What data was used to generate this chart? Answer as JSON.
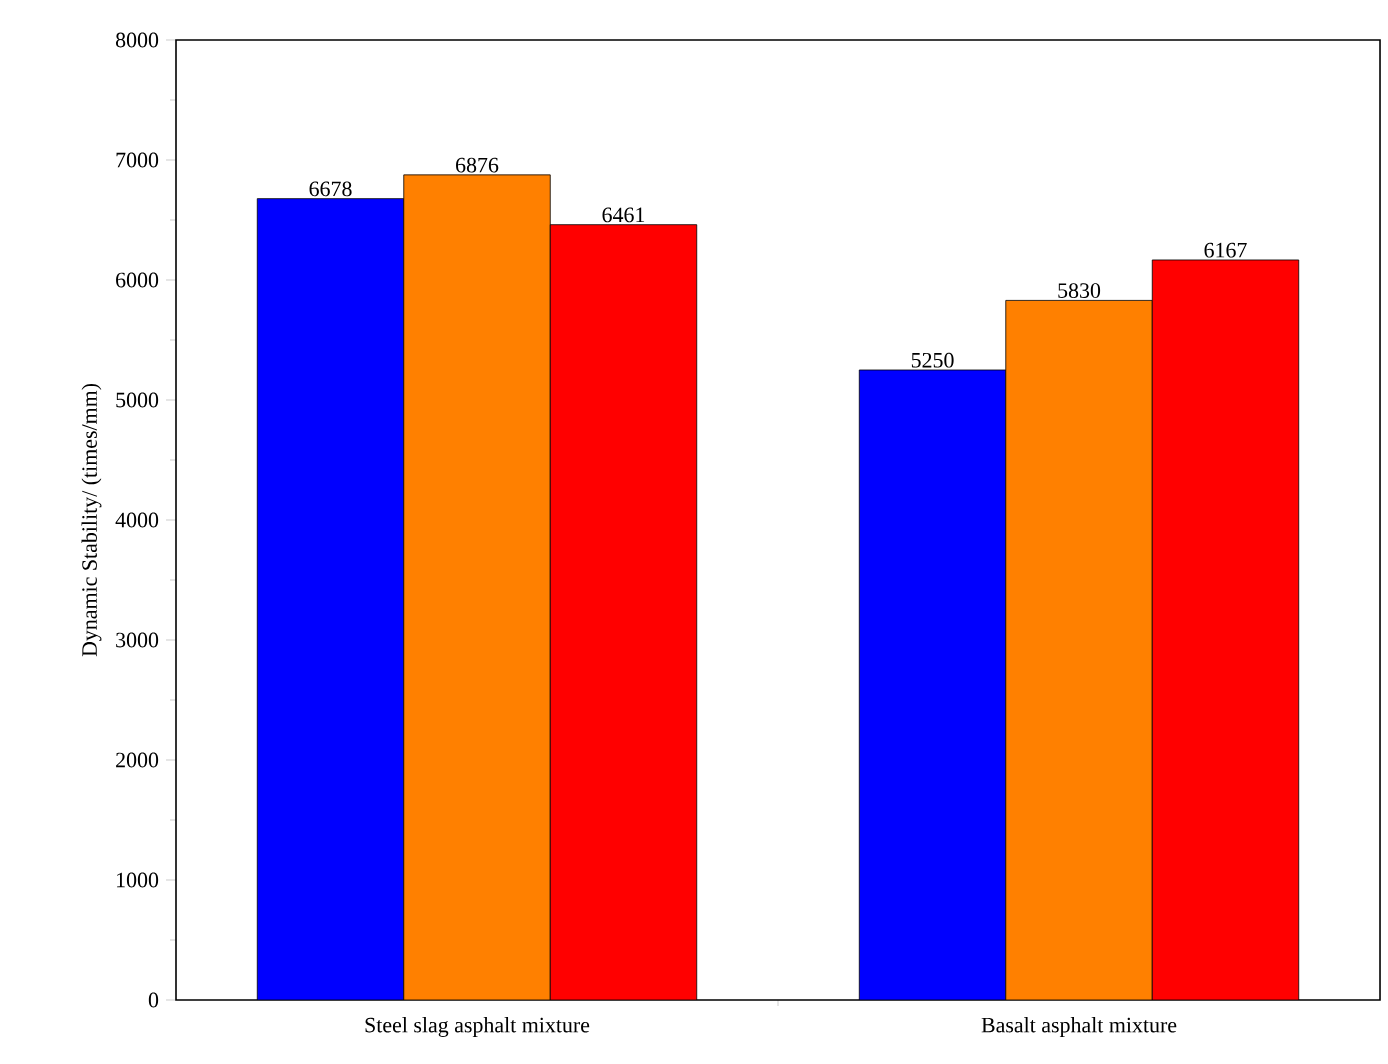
{
  "chart_data": {
    "type": "bar",
    "ylabel": "Dynamic Stability/ (times/mm)",
    "categories": [
      "Steel slag asphalt mixture",
      "Basalt asphalt mixture"
    ],
    "series": [
      {
        "color": "#0000ff",
        "values": [
          6678,
          5250
        ]
      },
      {
        "color": "#ff8000",
        "values": [
          6876,
          5830
        ]
      },
      {
        "color": "#ff0000",
        "values": [
          6461,
          6167
        ]
      }
    ],
    "ylim": [
      0,
      8000
    ],
    "yticks": [
      0,
      1000,
      2000,
      3000,
      4000,
      5000,
      6000,
      7000,
      8000
    ],
    "data_labels": true
  }
}
